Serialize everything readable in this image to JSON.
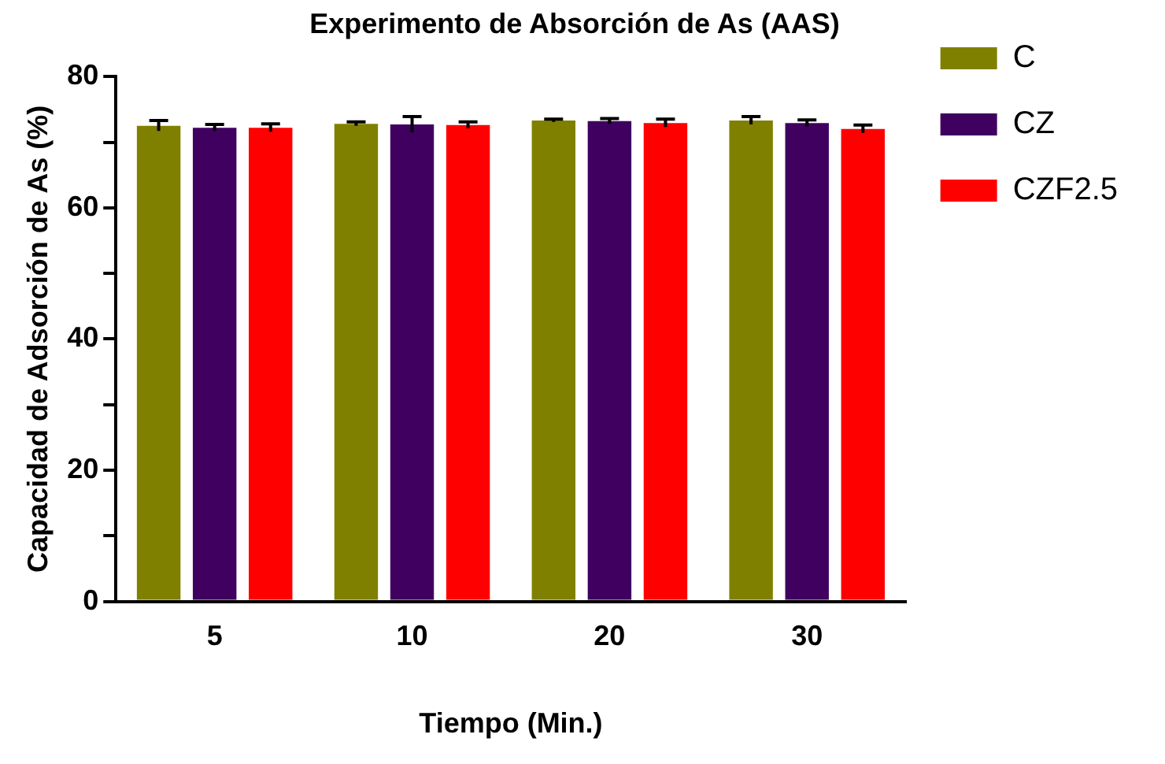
{
  "chart_data": {
    "type": "bar",
    "title": "Experimento de Absorción de As (AAS)",
    "xlabel": "Tiempo (Min.)",
    "ylabel": "Capacidad de Adsorción de As (%)",
    "categories": [
      "5",
      "10",
      "20",
      "30"
    ],
    "series": [
      {
        "name": "C",
        "color": "#808000",
        "values": [
          72.5,
          72.8,
          73.3,
          73.3
        ],
        "errors": [
          0.8,
          0.3,
          0.2,
          0.6
        ]
      },
      {
        "name": "CZ",
        "color": "#400060",
        "values": [
          72.2,
          72.7,
          73.2,
          72.9
        ],
        "errors": [
          0.5,
          1.2,
          0.4,
          0.5
        ]
      },
      {
        "name": "CZF2.5",
        "color": "#ff0000",
        "values": [
          72.2,
          72.6,
          72.9,
          72.0
        ],
        "errors": [
          0.6,
          0.5,
          0.6,
          0.6
        ]
      }
    ],
    "ylim": [
      0,
      80
    ],
    "yticks": [
      0,
      {
        "value": 10,
        "label": null
      },
      20,
      {
        "value": 30,
        "label": null
      },
      40,
      {
        "value": 50,
        "label": null
      },
      60,
      {
        "value": 70,
        "label": null
      },
      80
    ],
    "grid": false,
    "legend": "right"
  }
}
